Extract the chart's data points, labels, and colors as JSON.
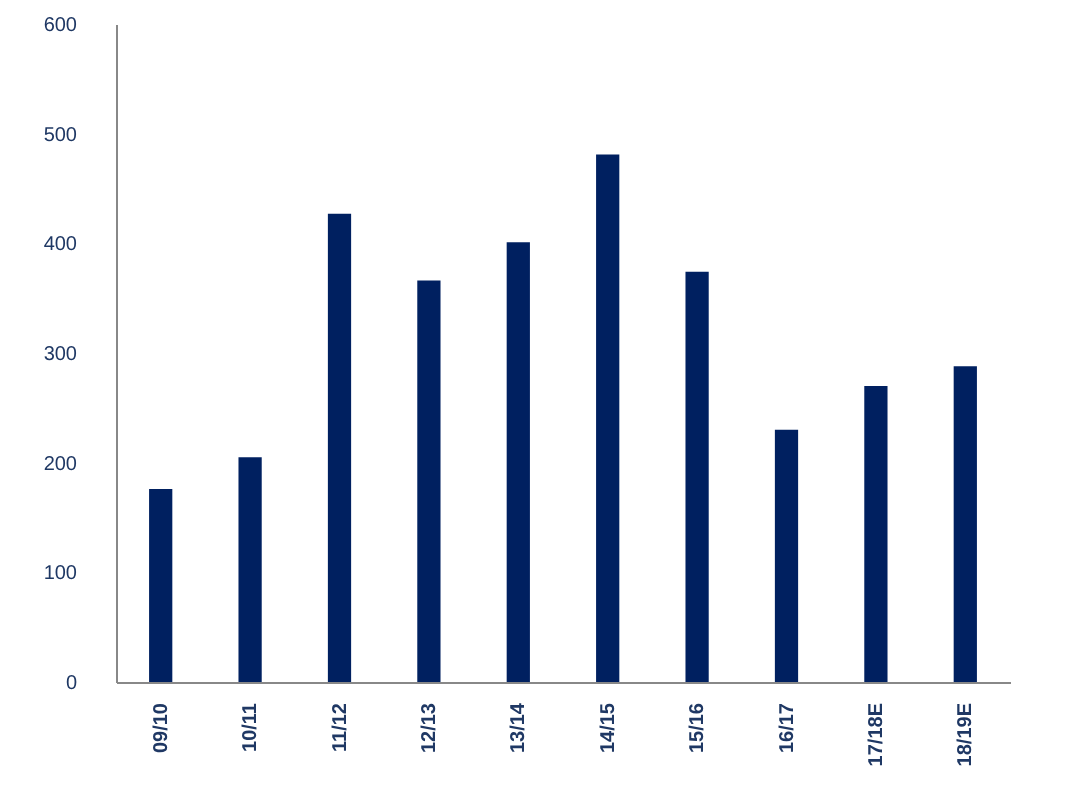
{
  "chart_data": {
    "type": "bar",
    "categories": [
      "09/10",
      "10/11",
      "11/12",
      "12/13",
      "13/14",
      "14/15",
      "15/16",
      "16/17",
      "17/18E",
      "18/19E"
    ],
    "values": [
      176,
      205,
      427,
      366,
      401,
      481,
      374,
      230,
      270,
      288
    ],
    "color": "#002060",
    "ylim": [
      0,
      600
    ],
    "yticks": [
      0,
      100,
      200,
      300,
      400,
      500,
      600
    ],
    "grid": false
  }
}
